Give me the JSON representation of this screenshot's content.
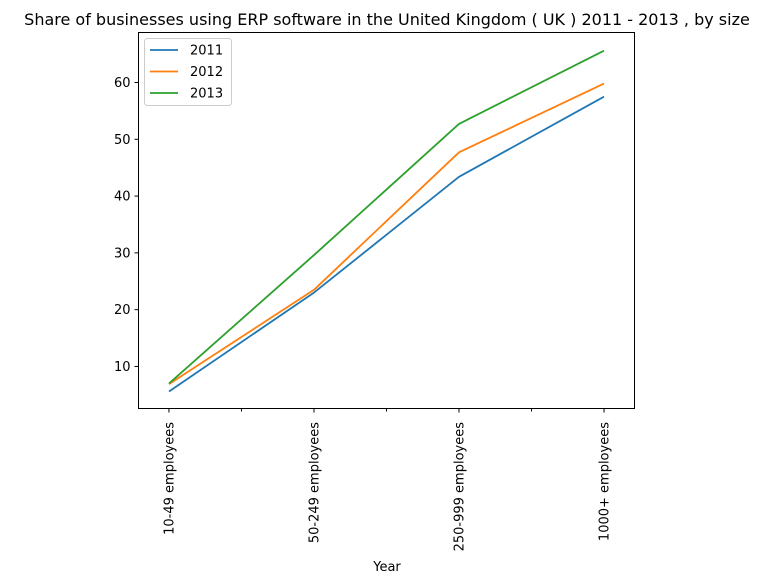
{
  "chart_data": {
    "type": "line",
    "title": "Share of businesses using ERP software in the United Kingdom ( UK ) 2011 - 2013 , by size",
    "xlabel": "Year",
    "ylabel": "",
    "categories": [
      "10-49 employees",
      "50-249 employees",
      "250-999 employees",
      "1000+ employees"
    ],
    "ylim": [
      2.6,
      68.8
    ],
    "yticks": [
      10,
      20,
      30,
      40,
      50,
      60
    ],
    "legend_position": "top-left",
    "grid": false,
    "series": [
      {
        "name": "2011",
        "color": "#1f77b4",
        "values": [
          5.6,
          23.0,
          43.4,
          57.5
        ]
      },
      {
        "name": "2012",
        "color": "#ff7f0e",
        "values": [
          6.9,
          23.5,
          47.7,
          59.8
        ]
      },
      {
        "name": "2013",
        "color": "#2ca02c",
        "values": [
          7.0,
          29.6,
          52.7,
          65.6
        ]
      }
    ]
  }
}
